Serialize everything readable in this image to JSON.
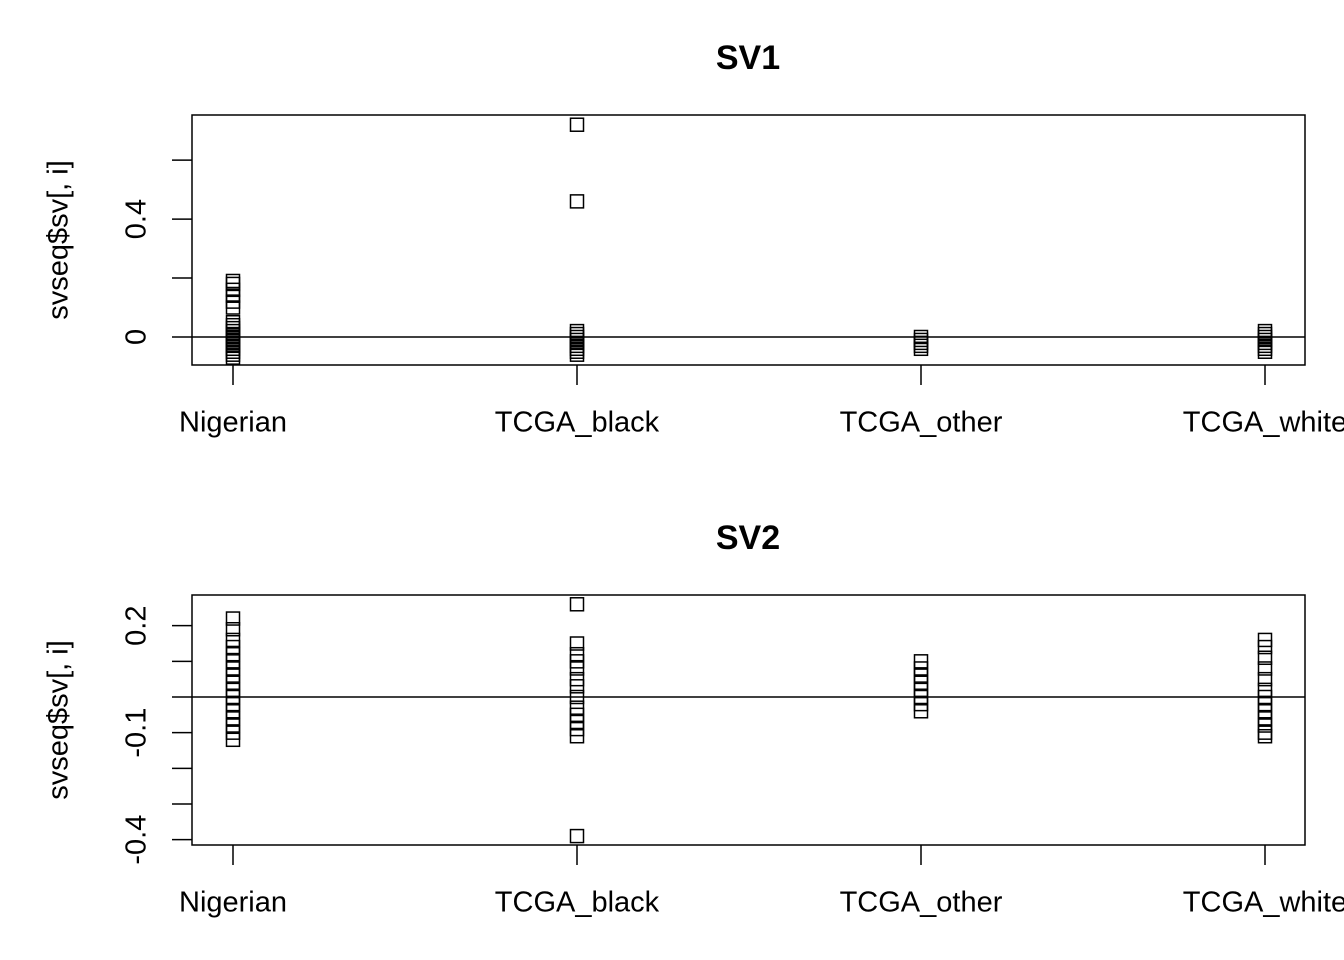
{
  "chart_data": [
    {
      "type": "strip",
      "title": "SV1",
      "ylabel": "svseq$sv[, i]",
      "categories": [
        "Nigerian",
        "TCGA_black",
        "TCGA_other",
        "TCGA_white"
      ],
      "values": [
        [
          0.19,
          0.18,
          0.16,
          0.14,
          0.12,
          0.1,
          0.05,
          0.04,
          0.03,
          0.02,
          0.01,
          0.0,
          -0.01,
          -0.02,
          -0.03,
          -0.04,
          -0.05,
          -0.06,
          -0.07
        ],
        [
          0.72,
          0.46,
          0.02,
          0.01,
          0.0,
          -0.01,
          -0.02,
          -0.03,
          -0.04,
          -0.05,
          -0.06
        ],
        [
          0.0,
          -0.01,
          -0.02,
          -0.03,
          -0.04
        ],
        [
          0.02,
          0.01,
          0.0,
          -0.01,
          -0.02,
          -0.03,
          -0.04,
          -0.05
        ]
      ],
      "color": "#000000",
      "ylim": [
        -0.095,
        0.753
      ],
      "yticks": [
        0.0,
        {
          "value": 0.2,
          "label": null
        },
        0.4,
        {
          "value": 0.6,
          "label": null
        }
      ],
      "hline": 0
    },
    {
      "type": "strip",
      "title": "SV2",
      "ylabel": "svseq$sv[, i]",
      "categories": [
        "Nigerian",
        "TCGA_black",
        "TCGA_other",
        "TCGA_white"
      ],
      "values": [
        [
          0.22,
          0.19,
          0.16,
          0.14,
          0.12,
          0.1,
          0.08,
          0.06,
          0.04,
          0.02,
          0.0,
          -0.02,
          -0.04,
          -0.06,
          -0.08,
          -0.1,
          -0.12
        ],
        [
          0.26,
          0.15,
          0.12,
          0.1,
          0.08,
          0.05,
          0.03,
          0.0,
          -0.03,
          -0.05,
          -0.07,
          -0.09,
          -0.11,
          -0.39
        ],
        [
          0.1,
          0.08,
          0.06,
          0.04,
          0.02,
          0.0,
          -0.02,
          -0.04
        ],
        [
          0.16,
          0.14,
          0.11,
          0.08,
          0.05,
          0.02,
          0.0,
          -0.02,
          -0.04,
          -0.06,
          -0.08,
          -0.1,
          -0.11
        ]
      ],
      "color": "#000000",
      "ylim": [
        -0.415,
        0.286
      ],
      "yticks": [
        -0.4,
        {
          "value": -0.3,
          "label": null
        },
        {
          "value": -0.2,
          "label": null
        },
        -0.1,
        {
          "value": 0.0,
          "label": null
        },
        {
          "value": 0.1,
          "label": null
        },
        0.2
      ],
      "hline": 0
    }
  ]
}
